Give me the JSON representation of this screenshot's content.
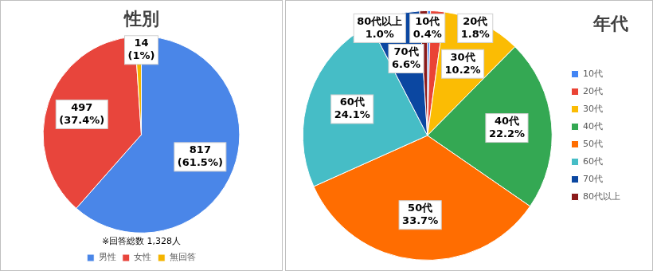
{
  "chart_data": [
    {
      "type": "pie",
      "title": "性別",
      "categories": [
        "男性",
        "女性",
        "無回答"
      ],
      "values": [
        817,
        497,
        14
      ],
      "value_labels": [
        "817\n(61.5%)",
        "497\n(37.4%)",
        "14\n(1%)"
      ],
      "colors": [
        "#4a86e8",
        "#e8453c",
        "#f4b400"
      ],
      "data_labels": true,
      "legend": "bottom",
      "annotations": [
        "※回答総数 1,328人"
      ]
    },
    {
      "type": "pie",
      "title": "年代",
      "categories": [
        "10代",
        "20代",
        "30代",
        "40代",
        "50代",
        "60代",
        "70代",
        "80代以上"
      ],
      "values": [
        0.4,
        1.8,
        10.2,
        22.2,
        33.7,
        24.1,
        6.6,
        1.0
      ],
      "value_labels": [
        "10代\n0.4%",
        "20代\n1.8%",
        "30代\n10.2%",
        "40代\n22.2%",
        "50代\n33.7%",
        "60代\n24.1%",
        "70代\n6.6%",
        "80代以上\n1.0%"
      ],
      "colors": [
        "#4285f4",
        "#ea4335",
        "#fbbc04",
        "#34a853",
        "#ff6d01",
        "#46bdc6",
        "#0b47a1",
        "#8b1a1a"
      ],
      "data_labels": true,
      "legend": "right"
    }
  ]
}
